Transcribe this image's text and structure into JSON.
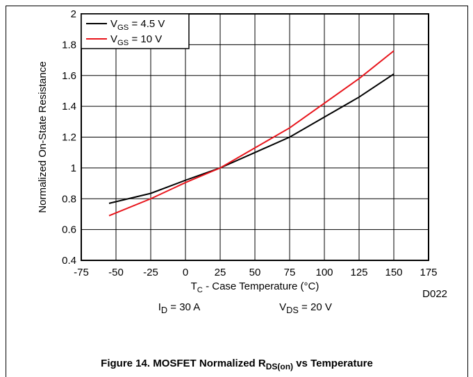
{
  "chart_data": {
    "type": "line",
    "x_label": [
      "T",
      "C",
      " - Case Temperature (°C)"
    ],
    "y_label": "Normalized On-State Resistance",
    "x": [
      -55,
      -25,
      0,
      25,
      50,
      75,
      100,
      125,
      150
    ],
    "series": [
      {
        "name": [
          "V",
          "GS",
          " = 4.5 V"
        ],
        "color": "#000000",
        "values": [
          0.77,
          0.835,
          0.92,
          1.0,
          1.1,
          1.2,
          1.33,
          1.46,
          1.61
        ]
      },
      {
        "name": [
          "V",
          "GS",
          " = 10 V"
        ],
        "color": "#e8141b",
        "values": [
          0.69,
          0.8,
          0.905,
          1.0,
          1.13,
          1.26,
          1.42,
          1.58,
          1.76
        ]
      }
    ],
    "xlim": [
      -75,
      175
    ],
    "xticks": [
      -75,
      -50,
      -25,
      0,
      25,
      50,
      75,
      100,
      125,
      150,
      175
    ],
    "ylim": [
      0.4,
      2
    ],
    "yticks": [
      0.4,
      0.6,
      0.8,
      1,
      1.2,
      1.4,
      1.6,
      1.8,
      2
    ],
    "grid": true,
    "legend": "upper left",
    "annotations": [
      [
        "I",
        "D",
        " = 30 A"
      ],
      [
        "V",
        "DS",
        " = 20 V"
      ]
    ],
    "code": "D022",
    "caption": [
      "Figure 14. MOSFET Normalized R",
      "DS(on)",
      " vs Temperature"
    ]
  }
}
